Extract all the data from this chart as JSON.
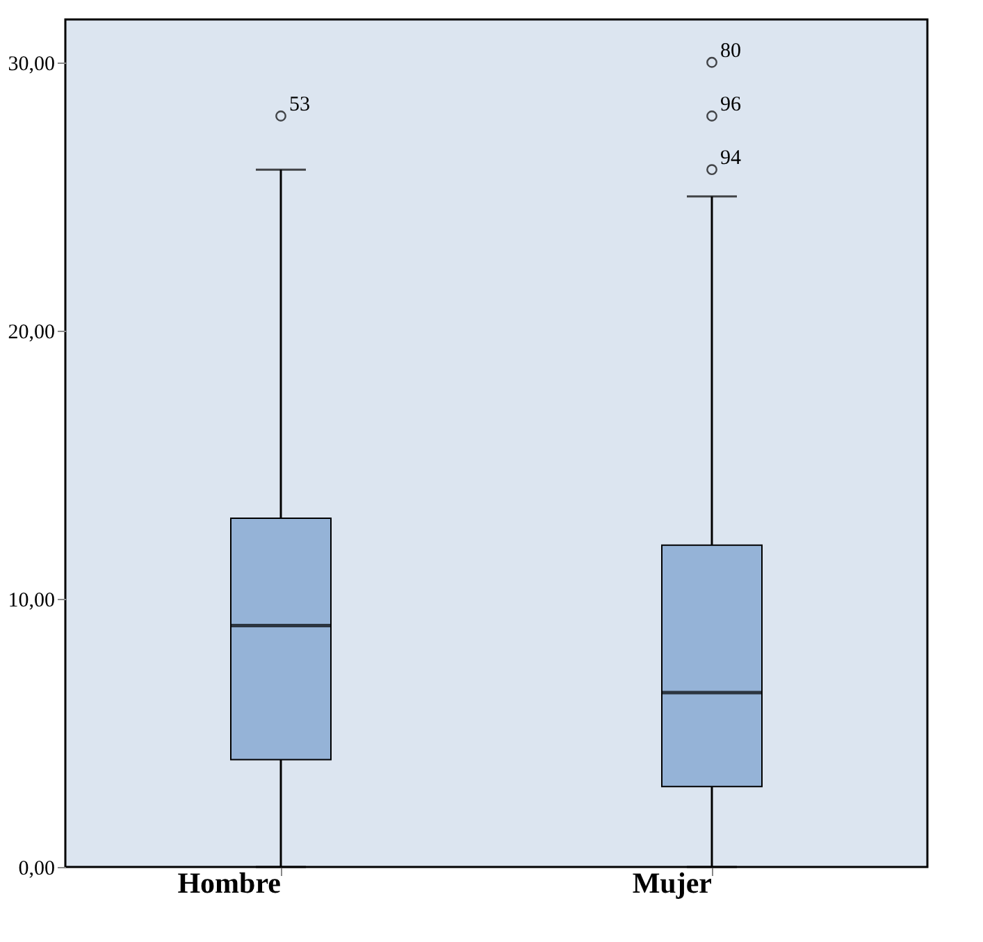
{
  "chart_data": {
    "type": "box",
    "categories": [
      "Hombre",
      "Mujer"
    ],
    "boxes": [
      {
        "low": 0,
        "q1": 4,
        "median": 9,
        "q3": 13,
        "high": 26,
        "outliers": [
          28
        ]
      },
      {
        "low": 0,
        "q1": 3,
        "median": 6.5,
        "q3": 12,
        "high": 25,
        "outliers": [
          26,
          28,
          30
        ]
      }
    ],
    "color": "#95b3d7",
    "ylim": [
      0,
      31.6
    ],
    "yticks": [
      {
        "value": 0,
        "label": "0,00"
      },
      {
        "value": 10,
        "label": "10,00"
      },
      {
        "value": 20,
        "label": "20,00"
      },
      {
        "value": 30,
        "label": "30,00"
      }
    ],
    "annotations": [
      "53",
      "94",
      "96",
      "80"
    ],
    "grid": false
  }
}
